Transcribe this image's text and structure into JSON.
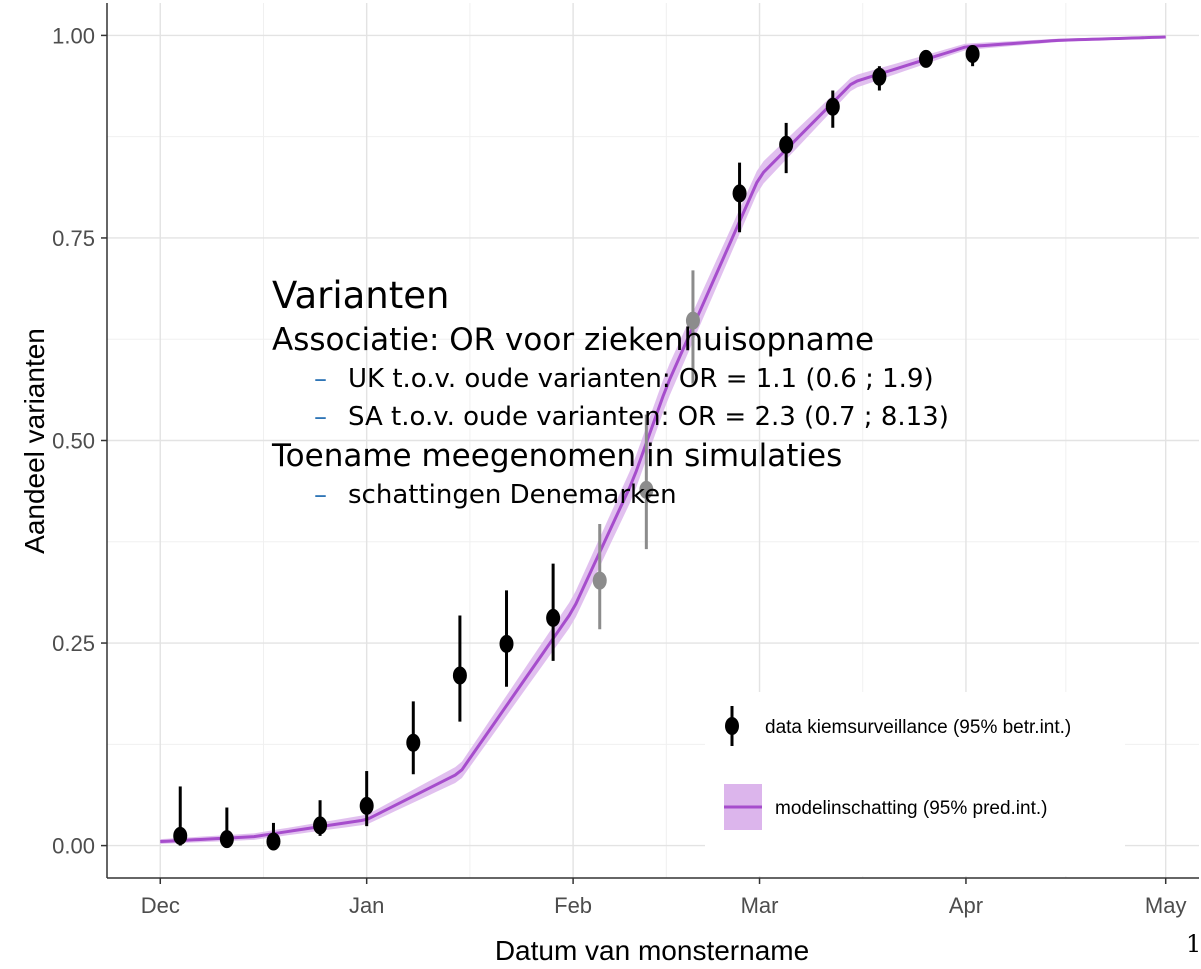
{
  "chart_data": {
    "type": "scatter",
    "xlabel": "Datum van monstername",
    "ylabel": "Aandeel varianten",
    "x_ticks": [
      "Dec",
      "Jan",
      "Feb",
      "Mar",
      "Apr",
      "May"
    ],
    "x_tick_dates": [
      "2020-12-01",
      "2021-01-01",
      "2021-02-01",
      "2021-03-01",
      "2021-04-01",
      "2021-05-01"
    ],
    "y_ticks": [
      "0.00",
      "0.25",
      "0.50",
      "0.75",
      "1.00"
    ],
    "ylim": [
      -0.04,
      1.04
    ],
    "xlim": [
      "2020-11-23",
      "2021-05-06"
    ],
    "grid": true,
    "legend_position": "bottom-right",
    "series": [
      {
        "name": "data kiemsurveillance (95% betr.int.)",
        "color": "#000000",
        "points": [
          {
            "x": "2020-12-04",
            "y": 0.012,
            "lo": 0.0,
            "hi": 0.073
          },
          {
            "x": "2020-12-11",
            "y": 0.008,
            "lo": 0.0,
            "hi": 0.047
          },
          {
            "x": "2020-12-18",
            "y": 0.005,
            "lo": 0.0,
            "hi": 0.028
          },
          {
            "x": "2020-12-25",
            "y": 0.025,
            "lo": 0.012,
            "hi": 0.056
          },
          {
            "x": "2021-01-01",
            "y": 0.049,
            "lo": 0.024,
            "hi": 0.092
          },
          {
            "x": "2021-01-08",
            "y": 0.127,
            "lo": 0.088,
            "hi": 0.178
          },
          {
            "x": "2021-01-15",
            "y": 0.21,
            "lo": 0.153,
            "hi": 0.284
          },
          {
            "x": "2021-01-22",
            "y": 0.249,
            "lo": 0.196,
            "hi": 0.315
          },
          {
            "x": "2021-01-29",
            "y": 0.281,
            "lo": 0.228,
            "hi": 0.348
          },
          {
            "x": "2021-02-26",
            "y": 0.805,
            "lo": 0.757,
            "hi": 0.843
          },
          {
            "x": "2021-03-05",
            "y": 0.865,
            "lo": 0.83,
            "hi": 0.892
          },
          {
            "x": "2021-03-12",
            "y": 0.912,
            "lo": 0.886,
            "hi": 0.932
          },
          {
            "x": "2021-03-19",
            "y": 0.949,
            "lo": 0.932,
            "hi": 0.962
          },
          {
            "x": "2021-03-26",
            "y": 0.971,
            "lo": 0.962,
            "hi": 0.979
          },
          {
            "x": "2021-04-02",
            "y": 0.977,
            "lo": 0.962,
            "hi": 0.986
          }
        ],
        "faded_points": [
          {
            "x": "2021-02-05",
            "y": 0.327,
            "lo": 0.267,
            "hi": 0.397
          },
          {
            "x": "2021-02-12",
            "y": 0.439,
            "lo": 0.366,
            "hi": 0.532
          },
          {
            "x": "2021-02-19",
            "y": 0.648,
            "lo": 0.57,
            "hi": 0.71
          }
        ],
        "faded_color": "#8c8c8c"
      },
      {
        "name": "modelinschatting (95% pred.int.)",
        "type": "line",
        "color": "#a64dcc",
        "band_color": "#dcb5ec",
        "x": [
          "2020-12-01",
          "2020-12-15",
          "2021-01-01",
          "2021-01-15",
          "2021-02-01",
          "2021-02-10",
          "2021-02-15",
          "2021-03-01",
          "2021-03-15",
          "2021-04-01",
          "2021-04-15",
          "2021-05-01"
        ],
        "y": [
          0.005,
          0.011,
          0.032,
          0.09,
          0.291,
          0.451,
          0.566,
          0.826,
          0.942,
          0.986,
          0.994,
          0.998
        ],
        "band_width": [
          0.003,
          0.004,
          0.006,
          0.01,
          0.016,
          0.02,
          0.02,
          0.014,
          0.008,
          0.004,
          0.002,
          0.001
        ]
      }
    ]
  },
  "overlay": {
    "title": "Varianten",
    "line1": "Associatie: OR voor ziekenhuisopname",
    "bullet1": "UK t.o.v. oude varianten: OR = 1.1 (0.6 ; 1.9)",
    "bullet2": "SA t.o.v. oude varianten: OR = 2.3 (0.7 ; 8.13)",
    "line2": "Toename meegenomen in simulaties",
    "bullet3": "schattingen Denemarken",
    "dash": "–"
  },
  "page_number": "1"
}
